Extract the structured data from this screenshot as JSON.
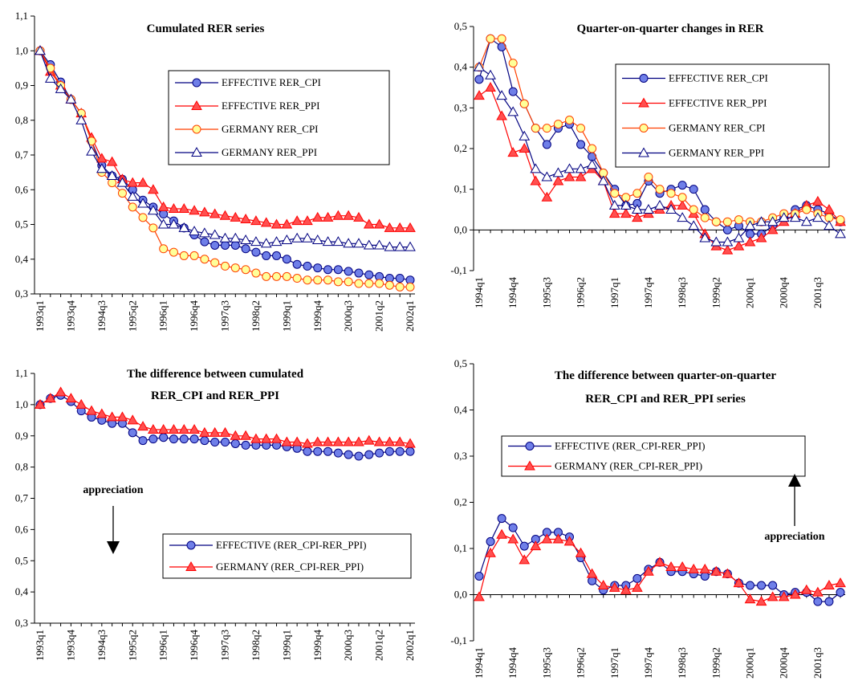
{
  "chart_data": [
    {
      "type": "line",
      "title": [
        "Cumulated RER series"
      ],
      "categories": [
        "1993q1",
        null,
        null,
        "1993q4",
        null,
        null,
        "1994q3",
        null,
        null,
        "1995q2",
        null,
        null,
        "1996q1",
        null,
        null,
        "1996q4",
        null,
        null,
        "1997q3",
        null,
        null,
        "1998q2",
        null,
        null,
        "1999q1",
        null,
        null,
        "1999q4",
        null,
        null,
        "2000q3",
        null,
        null,
        "2001q2",
        null,
        null,
        "2002q1"
      ],
      "ylim": [
        0.3,
        1.1
      ],
      "yticks": [
        {
          "value": 0.3,
          "label": "0,3"
        },
        {
          "value": 0.4,
          "label": "0,4"
        },
        {
          "value": 0.5,
          "label": "0,5"
        },
        {
          "value": 0.6,
          "label": "0,6"
        },
        {
          "value": 0.7,
          "label": "0,7"
        },
        {
          "value": 0.8,
          "label": "0,8"
        },
        {
          "value": 0.9,
          "label": "0,9"
        },
        {
          "value": 1.0,
          "label": "1,0"
        },
        {
          "value": 1.1,
          "label": "1,1"
        }
      ],
      "series": [
        {
          "name": "EFFECTIVE RER_CPI",
          "color": "#000080",
          "marker": "circle",
          "fill": "#6f7fe8",
          "values": [
            1.0,
            0.96,
            0.91,
            0.86,
            0.82,
            0.74,
            0.67,
            0.64,
            0.63,
            0.6,
            0.57,
            0.55,
            0.53,
            0.51,
            0.49,
            0.47,
            0.45,
            0.44,
            0.44,
            0.44,
            0.43,
            0.42,
            0.41,
            0.41,
            0.4,
            0.385,
            0.38,
            0.375,
            0.37,
            0.37,
            0.365,
            0.36,
            0.355,
            0.35,
            0.345,
            0.345,
            0.34
          ]
        },
        {
          "name": "EFFECTIVE RER_PPI",
          "color": "#ff0000",
          "marker": "triangle",
          "fill": "#ff5050",
          "values": [
            1.0,
            0.94,
            0.9,
            0.86,
            0.82,
            0.75,
            0.69,
            0.68,
            0.63,
            0.62,
            0.62,
            0.6,
            0.55,
            0.545,
            0.545,
            0.54,
            0.535,
            0.53,
            0.525,
            0.52,
            0.515,
            0.51,
            0.505,
            0.5,
            0.5,
            0.51,
            0.51,
            0.52,
            0.52,
            0.525,
            0.525,
            0.52,
            0.5,
            0.5,
            0.49,
            0.49,
            0.49
          ]
        },
        {
          "name": "GERMANY RER_CPI",
          "color": "#ff4000",
          "marker": "circle",
          "fill": "#ffff99",
          "values": [
            1.0,
            0.95,
            0.9,
            0.86,
            0.82,
            0.74,
            0.65,
            0.62,
            0.59,
            0.55,
            0.52,
            0.49,
            0.43,
            0.42,
            0.41,
            0.41,
            0.4,
            0.39,
            0.38,
            0.375,
            0.37,
            0.36,
            0.35,
            0.35,
            0.35,
            0.345,
            0.34,
            0.34,
            0.34,
            0.335,
            0.335,
            0.33,
            0.33,
            0.33,
            0.325,
            0.32,
            0.32
          ]
        },
        {
          "name": "GERMANY RER_PPI",
          "color": "#000080",
          "marker": "triangle",
          "fill": "#ffffff",
          "values": [
            1.0,
            0.92,
            0.89,
            0.86,
            0.8,
            0.71,
            0.66,
            0.64,
            0.62,
            0.58,
            0.56,
            0.54,
            0.5,
            0.5,
            0.49,
            0.48,
            0.475,
            0.47,
            0.46,
            0.46,
            0.455,
            0.45,
            0.445,
            0.45,
            0.455,
            0.46,
            0.46,
            0.455,
            0.45,
            0.45,
            0.445,
            0.445,
            0.44,
            0.44,
            0.435,
            0.435,
            0.435
          ]
        }
      ]
    },
    {
      "type": "line",
      "title": [
        "Quarter-on-quarter changes in RER"
      ],
      "categories": [
        "1994q1",
        null,
        null,
        "1994q4",
        null,
        null,
        "1995q3",
        null,
        null,
        "1996q2",
        null,
        null,
        "1997q1",
        null,
        null,
        "1997q4",
        null,
        null,
        "1998q3",
        null,
        null,
        "1999q2",
        null,
        null,
        "2000q1",
        null,
        null,
        "2000q4",
        null,
        null,
        "2001q3",
        null,
        null
      ],
      "ylim": [
        -0.1,
        0.5
      ],
      "yticks": [
        {
          "value": -0.1,
          "label": "-0,1"
        },
        {
          "value": 0,
          "label": "0,0"
        },
        {
          "value": 0.1,
          "label": "0,1"
        },
        {
          "value": 0.2,
          "label": "0,2"
        },
        {
          "value": 0.3,
          "label": "0,3"
        },
        {
          "value": 0.4,
          "label": "0,4"
        },
        {
          "value": 0.5,
          "label": "0,5"
        }
      ],
      "series": [
        {
          "name": "EFFECTIVE RER_CPI",
          "color": "#000080",
          "marker": "circle",
          "fill": "#6f7fe8",
          "values": [
            0.37,
            0.47,
            0.45,
            0.34,
            0.31,
            0.25,
            0.21,
            0.25,
            0.26,
            0.21,
            0.18,
            0.14,
            0.1,
            0.06,
            0.065,
            0.12,
            0.09,
            0.1,
            0.11,
            0.1,
            0.05,
            0.02,
            0.0,
            0.01,
            -0.01,
            -0.01,
            0.01,
            0.03,
            0.05,
            0.06,
            0.05,
            0.04,
            0.02
          ]
        },
        {
          "name": "EFFECTIVE RER_PPI",
          "color": "#ff0000",
          "marker": "triangle",
          "fill": "#ff5050",
          "values": [
            0.33,
            0.35,
            0.28,
            0.19,
            0.2,
            0.12,
            0.08,
            0.12,
            0.13,
            0.13,
            0.15,
            0.12,
            0.04,
            0.04,
            0.03,
            0.04,
            0.05,
            0.06,
            0.06,
            0.04,
            -0.01,
            -0.04,
            -0.05,
            -0.04,
            -0.03,
            -0.02,
            0.0,
            0.02,
            0.04,
            0.06,
            0.07,
            0.05,
            0.02
          ]
        },
        {
          "name": "GERMANY RER_CPI",
          "color": "#ff4000",
          "marker": "circle",
          "fill": "#ffff99",
          "values": [
            0.4,
            0.47,
            0.47,
            0.41,
            0.31,
            0.25,
            0.25,
            0.26,
            0.27,
            0.25,
            0.2,
            0.14,
            0.09,
            0.08,
            0.09,
            0.13,
            0.1,
            0.09,
            0.08,
            0.05,
            0.03,
            0.02,
            0.02,
            0.025,
            0.02,
            0.02,
            0.03,
            0.04,
            0.04,
            0.05,
            0.04,
            0.03,
            0.025
          ]
        },
        {
          "name": "GERMANY RER_PPI",
          "color": "#000080",
          "marker": "triangle",
          "fill": "#ffffff",
          "values": [
            0.4,
            0.38,
            0.33,
            0.29,
            0.23,
            0.15,
            0.13,
            0.14,
            0.15,
            0.15,
            0.16,
            0.12,
            0.06,
            0.06,
            0.05,
            0.05,
            0.06,
            0.05,
            0.03,
            0.01,
            -0.02,
            -0.03,
            -0.03,
            -0.02,
            0.01,
            0.02,
            0.02,
            0.03,
            0.03,
            0.02,
            0.03,
            0.01,
            -0.01
          ]
        }
      ]
    },
    {
      "type": "line",
      "title": [
        "The difference between cumulated",
        "RER_CPI and RER_PPI"
      ],
      "annotation": "appreciation",
      "categories": [
        "1993q1",
        null,
        null,
        "1993q4",
        null,
        null,
        "1994q3",
        null,
        null,
        "1995q2",
        null,
        null,
        "1996q1",
        null,
        null,
        "1996q4",
        null,
        null,
        "1997q3",
        null,
        null,
        "1998q2",
        null,
        null,
        "1999q1",
        null,
        null,
        "1999q4",
        null,
        null,
        "2000q3",
        null,
        null,
        "2001q2",
        null,
        null,
        "2002q1"
      ],
      "ylim": [
        0.3,
        1.1
      ],
      "yticks": [
        {
          "value": 0.3,
          "label": "0,3"
        },
        {
          "value": 0.4,
          "label": "0,4"
        },
        {
          "value": 0.5,
          "label": "0,5"
        },
        {
          "value": 0.6,
          "label": "0,6"
        },
        {
          "value": 0.7,
          "label": "0,7"
        },
        {
          "value": 0.8,
          "label": "0,8"
        },
        {
          "value": 0.9,
          "label": "0,9"
        },
        {
          "value": 1.0,
          "label": "1,0"
        },
        {
          "value": 1.1,
          "label": "1,1"
        }
      ],
      "series": [
        {
          "name": "EFFECTIVE (RER_CPI-RER_PPI)",
          "color": "#000080",
          "marker": "circle",
          "fill": "#6f7fe8",
          "values": [
            1.0,
            1.02,
            1.03,
            1.01,
            0.98,
            0.96,
            0.95,
            0.94,
            0.94,
            0.91,
            0.885,
            0.89,
            0.895,
            0.89,
            0.89,
            0.89,
            0.885,
            0.88,
            0.88,
            0.875,
            0.87,
            0.87,
            0.87,
            0.87,
            0.865,
            0.86,
            0.85,
            0.85,
            0.85,
            0.845,
            0.84,
            0.835,
            0.84,
            0.845,
            0.85,
            0.85,
            0.85
          ]
        },
        {
          "name": "GERMANY (RER_CPI-RER_PPI)",
          "color": "#ff0000",
          "marker": "triangle",
          "fill": "#ff5050",
          "values": [
            1.0,
            1.02,
            1.04,
            1.02,
            1.0,
            0.98,
            0.97,
            0.96,
            0.96,
            0.95,
            0.93,
            0.92,
            0.92,
            0.92,
            0.92,
            0.92,
            0.91,
            0.91,
            0.91,
            0.9,
            0.9,
            0.89,
            0.89,
            0.89,
            0.88,
            0.88,
            0.875,
            0.88,
            0.88,
            0.88,
            0.88,
            0.88,
            0.885,
            0.88,
            0.88,
            0.88,
            0.875
          ]
        }
      ]
    },
    {
      "type": "line",
      "title": [
        "The difference between quarter-on-quarter",
        "RER_CPI and RER_PPI series"
      ],
      "annotation": "appreciation",
      "categories": [
        "1994q1",
        null,
        null,
        "1994q4",
        null,
        null,
        "1995q3",
        null,
        null,
        "1996q2",
        null,
        null,
        "1997q1",
        null,
        null,
        "1997q4",
        null,
        null,
        "1998q3",
        null,
        null,
        "1999q2",
        null,
        null,
        "2000q1",
        null,
        null,
        "2000q4",
        null,
        null,
        "2001q3",
        null,
        null
      ],
      "ylim": [
        -0.1,
        0.5
      ],
      "yticks": [
        {
          "value": -0.1,
          "label": "-0,1"
        },
        {
          "value": 0,
          "label": "0,0"
        },
        {
          "value": 0.1,
          "label": "0,1"
        },
        {
          "value": 0.2,
          "label": "0,2"
        },
        {
          "value": 0.3,
          "label": "0,3"
        },
        {
          "value": 0.4,
          "label": "0,4"
        },
        {
          "value": 0.5,
          "label": "0,5"
        }
      ],
      "series": [
        {
          "name": "EFFECTIVE (RER_CPI-RER_PPI)",
          "color": "#000080",
          "marker": "circle",
          "fill": "#6f7fe8",
          "values": [
            0.04,
            0.115,
            0.165,
            0.145,
            0.105,
            0.12,
            0.135,
            0.135,
            0.125,
            0.08,
            0.03,
            0.01,
            0.02,
            0.02,
            0.035,
            0.055,
            0.07,
            0.05,
            0.05,
            0.045,
            0.04,
            0.05,
            0.045,
            0.025,
            0.02,
            0.02,
            0.02,
            0.0,
            0.005,
            0.005,
            -0.015,
            -0.015,
            0.005
          ]
        },
        {
          "name": "GERMANY (RER_CPI-RER_PPI)",
          "color": "#ff0000",
          "marker": "triangle",
          "fill": "#ff5050",
          "values": [
            -0.005,
            0.09,
            0.13,
            0.12,
            0.075,
            0.105,
            0.12,
            0.12,
            0.115,
            0.09,
            0.045,
            0.02,
            0.015,
            0.01,
            0.015,
            0.05,
            0.07,
            0.06,
            0.06,
            0.055,
            0.055,
            0.05,
            0.045,
            0.025,
            -0.01,
            -0.015,
            -0.005,
            -0.005,
            0.0,
            0.01,
            0.005,
            0.02,
            0.025
          ]
        }
      ]
    }
  ]
}
